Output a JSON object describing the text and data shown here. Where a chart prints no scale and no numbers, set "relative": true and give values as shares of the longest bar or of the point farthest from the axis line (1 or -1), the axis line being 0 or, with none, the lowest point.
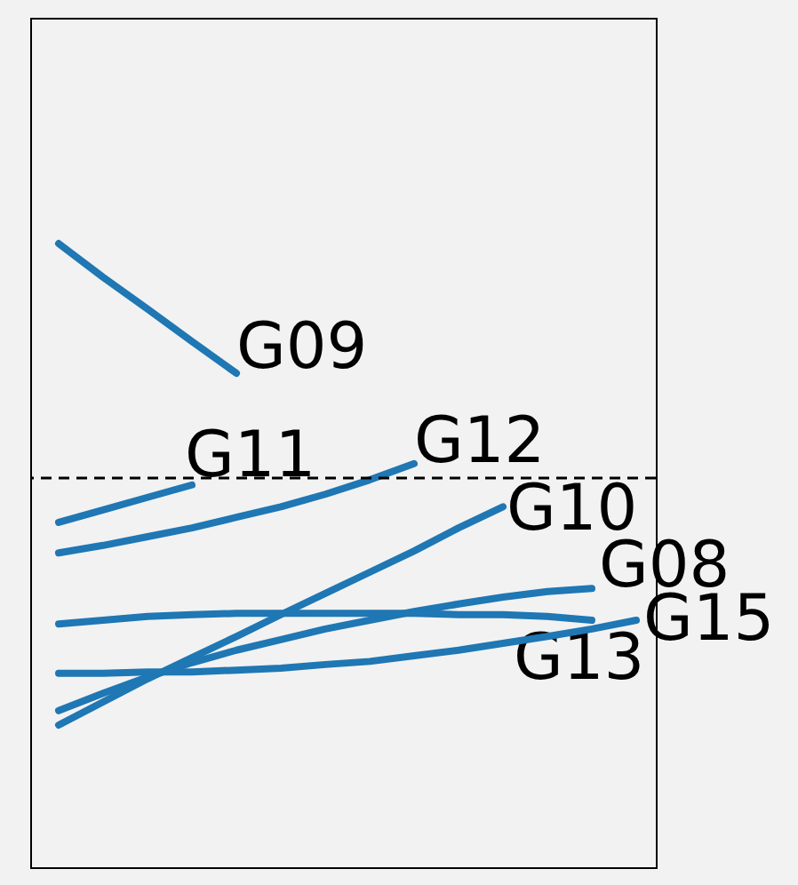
{
  "chart_data": {
    "type": "line",
    "relative": true,
    "categories": [
      null,
      null,
      null,
      null,
      null,
      null,
      null,
      null,
      null,
      null,
      null,
      null,
      null,
      null
    ],
    "series": [
      {
        "name": "G09",
        "color": "#1f77b4",
        "values": [
          1.0,
          0.946,
          0.895,
          0.843,
          0.792,
          null,
          null,
          null,
          null,
          null,
          null,
          null,
          null,
          null
        ]
      },
      {
        "name": "G11",
        "color": "#1f77b4",
        "values": [
          0.553,
          0.573,
          0.593,
          0.613,
          null,
          null,
          null,
          null,
          null,
          null,
          null,
          null,
          null,
          null
        ]
      },
      {
        "name": "G12",
        "color": "#1f77b4",
        "values": [
          0.504,
          0.516,
          0.53,
          0.544,
          0.561,
          0.578,
          0.598,
          0.621,
          0.647,
          null,
          null,
          null,
          null,
          null
        ]
      },
      {
        "name": "G10",
        "color": "#1f77b4",
        "values": [
          0.228,
          0.265,
          0.302,
          0.336,
          0.37,
          0.405,
          0.439,
          0.473,
          0.507,
          0.544,
          0.578,
          null,
          null,
          null
        ]
      },
      {
        "name": "G08",
        "color": "#1f77b4",
        "values": [
          0.251,
          0.279,
          0.305,
          0.328,
          0.348,
          0.365,
          0.382,
          0.396,
          0.41,
          0.422,
          0.433,
          0.442,
          0.447,
          null
        ]
      },
      {
        "name": "G13",
        "color": "#1f77b4",
        "values": [
          0.39,
          0.396,
          0.402,
          0.405,
          0.407,
          0.407,
          0.407,
          0.407,
          0.407,
          0.405,
          0.405,
          0.402,
          0.396,
          null
        ]
      },
      {
        "name": "G15",
        "color": "#1f77b4",
        "values": [
          0.311,
          0.311,
          0.313,
          0.313,
          0.316,
          0.319,
          0.325,
          0.33,
          0.339,
          0.348,
          0.359,
          0.37,
          0.382,
          0.396
        ]
      }
    ],
    "ref_lines": [
      {
        "axis": "y",
        "value": 0.624,
        "color": "#000000",
        "line_style": "dashed"
      }
    ]
  }
}
